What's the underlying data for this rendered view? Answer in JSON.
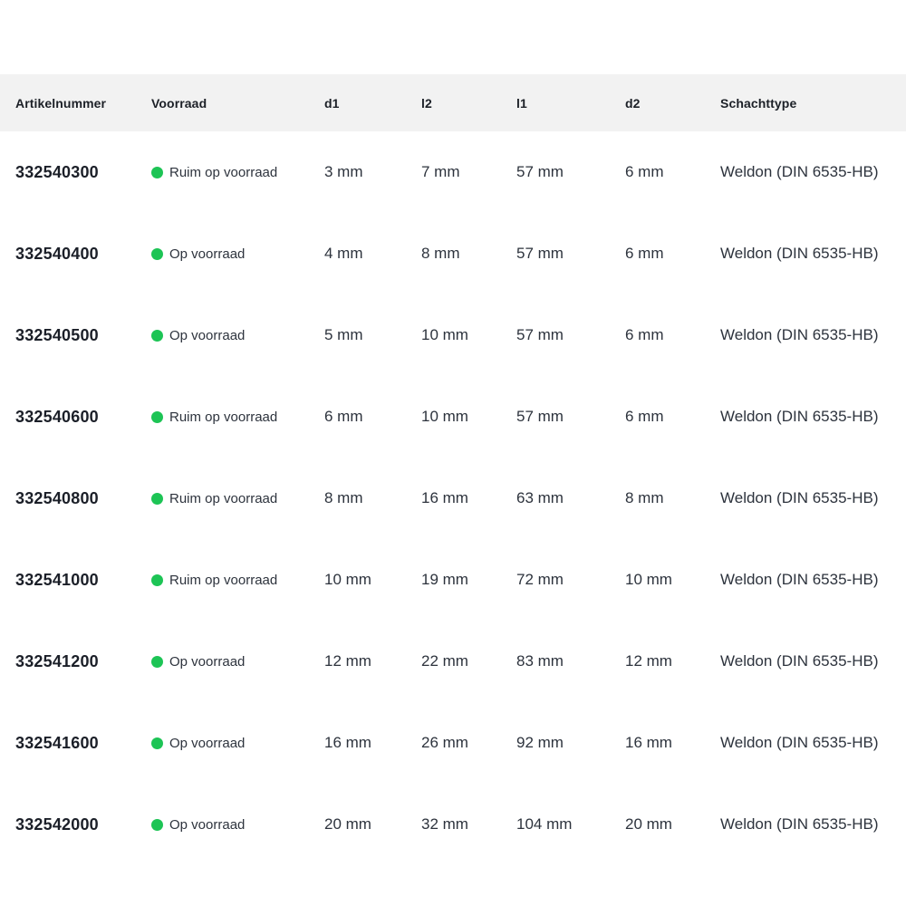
{
  "colors": {
    "stock_dot_green": "#1dc455",
    "header_bg": "#f2f2f2"
  },
  "table": {
    "columns": [
      {
        "key": "artikelnummer",
        "label": "Artikelnummer"
      },
      {
        "key": "voorraad",
        "label": "Voorraad"
      },
      {
        "key": "d1",
        "label": "d1"
      },
      {
        "key": "l2",
        "label": "l2"
      },
      {
        "key": "l1",
        "label": "l1"
      },
      {
        "key": "d2",
        "label": "d2"
      },
      {
        "key": "schachttype",
        "label": "Schachttype"
      }
    ],
    "rows": [
      {
        "artikelnummer": "332540300",
        "voorraad": "Ruim op voorraad",
        "d1": "3 mm",
        "l2": "7 mm",
        "l1": "57 mm",
        "d2": "6 mm",
        "schachttype": "Weldon (DIN 6535-HB)"
      },
      {
        "artikelnummer": "332540400",
        "voorraad": "Op voorraad",
        "d1": "4 mm",
        "l2": "8 mm",
        "l1": "57 mm",
        "d2": "6 mm",
        "schachttype": "Weldon (DIN 6535-HB)"
      },
      {
        "artikelnummer": "332540500",
        "voorraad": "Op voorraad",
        "d1": "5 mm",
        "l2": "10 mm",
        "l1": "57 mm",
        "d2": "6 mm",
        "schachttype": "Weldon (DIN 6535-HB)"
      },
      {
        "artikelnummer": "332540600",
        "voorraad": "Ruim op voorraad",
        "d1": "6 mm",
        "l2": "10 mm",
        "l1": "57 mm",
        "d2": "6 mm",
        "schachttype": "Weldon (DIN 6535-HB)"
      },
      {
        "artikelnummer": "332540800",
        "voorraad": "Ruim op voorraad",
        "d1": "8 mm",
        "l2": "16 mm",
        "l1": "63 mm",
        "d2": "8 mm",
        "schachttype": "Weldon (DIN 6535-HB)"
      },
      {
        "artikelnummer": "332541000",
        "voorraad": "Ruim op voorraad",
        "d1": "10 mm",
        "l2": "19 mm",
        "l1": "72 mm",
        "d2": "10 mm",
        "schachttype": "Weldon (DIN 6535-HB)"
      },
      {
        "artikelnummer": "332541200",
        "voorraad": "Op voorraad",
        "d1": "12 mm",
        "l2": "22 mm",
        "l1": "83 mm",
        "d2": "12 mm",
        "schachttype": "Weldon (DIN 6535-HB)"
      },
      {
        "artikelnummer": "332541600",
        "voorraad": "Op voorraad",
        "d1": "16 mm",
        "l2": "26 mm",
        "l1": "92 mm",
        "d2": "16 mm",
        "schachttype": "Weldon (DIN 6535-HB)"
      },
      {
        "artikelnummer": "332542000",
        "voorraad": "Op voorraad",
        "d1": "20 mm",
        "l2": "32 mm",
        "l1": "104 mm",
        "d2": "20 mm",
        "schachttype": "Weldon (DIN 6535-HB)"
      }
    ]
  }
}
